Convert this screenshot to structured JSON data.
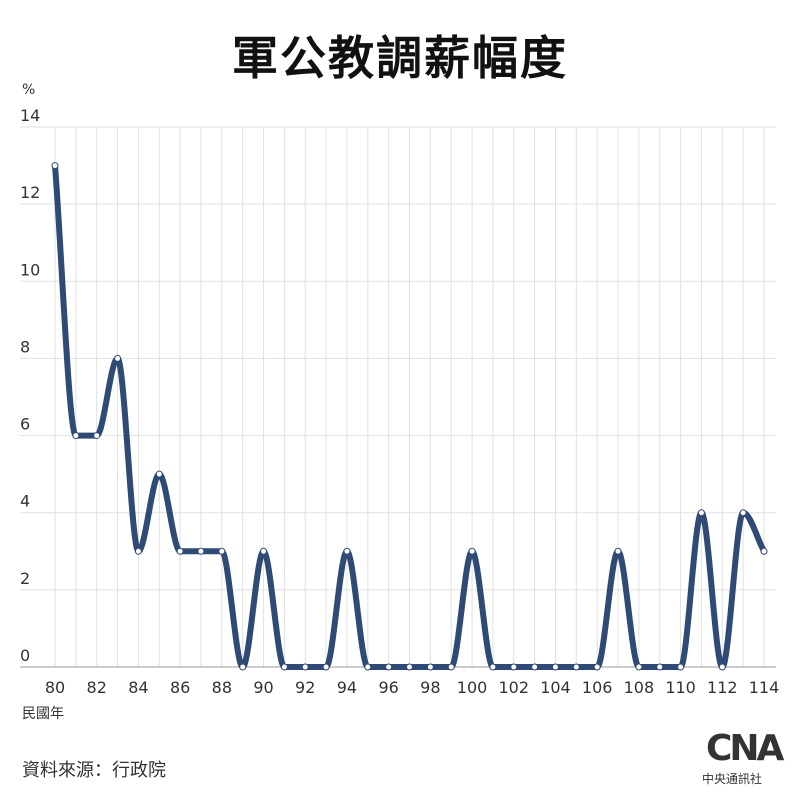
{
  "title": "軍公教調薪幅度",
  "source": "資料來源：行政院",
  "logo": {
    "mark": "CNA",
    "name": "中央通訊社"
  },
  "chart_data": {
    "type": "line",
    "ylabel": "%",
    "xlabel": "民國年",
    "ylim": [
      0,
      14
    ],
    "yticks": [
      0,
      2,
      4,
      6,
      8,
      10,
      12,
      14
    ],
    "xlim": [
      80,
      114
    ],
    "xticks": [
      80,
      82,
      84,
      86,
      88,
      90,
      92,
      94,
      96,
      98,
      100,
      102,
      104,
      106,
      108,
      110,
      112,
      114
    ],
    "grid": true,
    "line_color": "#2e4a75",
    "series": [
      {
        "x": [
          80,
          81,
          82,
          83,
          84,
          85,
          86,
          87,
          88,
          89,
          90,
          91,
          92,
          93,
          94,
          95,
          96,
          97,
          98,
          99,
          100,
          101,
          102,
          103,
          104,
          105,
          106,
          107,
          108,
          109,
          110,
          111,
          112,
          113,
          114
        ],
        "values": [
          13,
          6,
          6,
          8,
          3,
          5,
          3,
          3,
          3,
          0,
          3,
          0,
          0,
          0,
          3,
          0,
          0,
          0,
          0,
          0,
          3,
          0,
          0,
          0,
          0,
          0,
          0,
          3,
          0,
          0,
          0,
          4,
          0,
          4,
          3
        ]
      }
    ]
  }
}
